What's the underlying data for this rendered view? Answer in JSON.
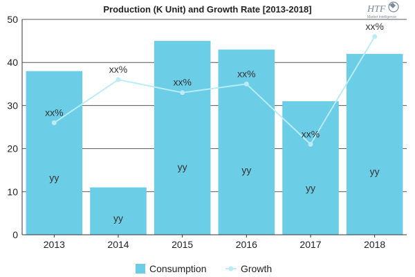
{
  "chart_data": {
    "type": "bar",
    "title": "Production (K Unit) and Growth Rate [2013-2018]",
    "categories": [
      "2013",
      "2014",
      "2015",
      "2016",
      "2017",
      "2018"
    ],
    "ylim": [
      0,
      50
    ],
    "yticks": [
      0,
      10,
      20,
      30,
      40,
      50
    ],
    "grid": true,
    "legend_position": "bottom",
    "series": [
      {
        "name": "Consumption",
        "kind": "bar",
        "color": "#6ccde6",
        "values": [
          38,
          11,
          45,
          43,
          31,
          42
        ],
        "labels": [
          "yy",
          "yy",
          "yy",
          "yy",
          "yy",
          "yy"
        ]
      },
      {
        "name": "Growth",
        "kind": "line",
        "color": "#b9ecf6",
        "values": [
          26,
          36,
          33,
          35,
          21,
          46
        ],
        "labels": [
          "xx%",
          "xx%",
          "xx%",
          "xx%",
          "xx%",
          "xx%"
        ]
      }
    ]
  },
  "logo": {
    "text": "HTF",
    "subtitle": "Market Intelligence",
    "icon": "globe-icon"
  }
}
